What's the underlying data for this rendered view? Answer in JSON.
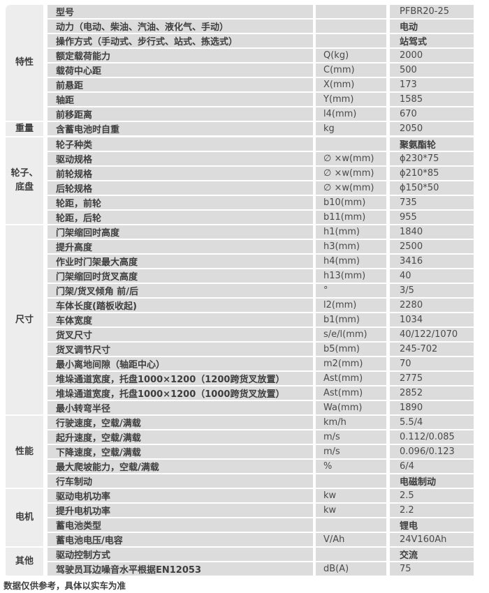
{
  "footer": "数据仅供参考，具体以实车为准",
  "table": {
    "groups": [
      {
        "category": "特性",
        "rows": [
          {
            "name": "型号",
            "unit": "",
            "value": "PFBR20-25"
          },
          {
            "name": "动力（电动、柴油、汽油、液化气、手动）",
            "unit": "",
            "value": "电动"
          },
          {
            "name": "操作方式（手动式、步行式、站式、拣选式）",
            "unit": "",
            "value": "站驾式"
          },
          {
            "name": "额定载荷能力",
            "unit": "Q(kg)",
            "value": "2000"
          },
          {
            "name": "载荷中心距",
            "unit": "C(mm)",
            "value": "500"
          },
          {
            "name": "前悬距",
            "unit": "X(mm)",
            "value": "173"
          },
          {
            "name": "轴距",
            "unit": "Y(mm)",
            "value": "1585"
          },
          {
            "name": "前移距离",
            "unit": "l4(mm)",
            "value": "670"
          }
        ]
      },
      {
        "category": "重量",
        "rows": [
          {
            "name": "含蓄电池时自重",
            "unit": "kg",
            "value": "2050"
          }
        ]
      },
      {
        "category": "轮子、底盘",
        "rows": [
          {
            "name": "轮子种类",
            "unit": "",
            "value": "聚氨酯轮"
          },
          {
            "name": "驱动规格",
            "unit": "∅ ×w(mm)",
            "value": "ϕ230*75"
          },
          {
            "name": "前轮规格",
            "unit": "∅ ×w(mm)",
            "value": "ϕ210*85"
          },
          {
            "name": "后轮规格",
            "unit": "∅ ×w(mm)",
            "value": "ϕ150*50"
          },
          {
            "name": "轮距，前轮",
            "unit": "b10(mm)",
            "value": "735"
          },
          {
            "name": "轮距，后轮",
            "unit": "b11(mm)",
            "value": "955"
          }
        ]
      },
      {
        "category": "尺寸",
        "rows": [
          {
            "name": "门架缩回时高度",
            "unit": "h1(mm)",
            "value": "1840"
          },
          {
            "name": "提升高度",
            "unit": "h3(mm)",
            "value": "2500"
          },
          {
            "name": "作业时门架最大高度",
            "unit": "h4(mm)",
            "value": "3416"
          },
          {
            "name": "门架缩回时货叉高度",
            "unit": "h13(mm)",
            "value": "40"
          },
          {
            "name": "门架/货叉倾角 前/后",
            "unit": "°",
            "value": "3/5"
          },
          {
            "name": "车体长度(踏板收起)",
            "unit": "l2(mm)",
            "value": "2280"
          },
          {
            "name": "车体宽度",
            "unit": "b1(mm)",
            "value": "1034"
          },
          {
            "name": "货叉尺寸",
            "unit": "s/e/l(mm)",
            "value": "40/122/1070"
          },
          {
            "name": "货叉调节尺寸",
            "unit": "b5(mm)",
            "value": "245-702"
          },
          {
            "name": "最小离地间隙（轴距中心）",
            "unit": "m2(mm)",
            "value": "70"
          },
          {
            "name": "堆垛通道宽度，托盘1000×1200（1200跨货叉放置）",
            "unit": "Ast(mm)",
            "value": "2775"
          },
          {
            "name": "堆垛通道宽度，托盘1000×1200（1000跨货叉放置）",
            "unit": "Ast(mm)",
            "value": "2852"
          },
          {
            "name": "最小转弯半径",
            "unit": "Wa(mm)",
            "value": "1890"
          }
        ]
      },
      {
        "category": "性能",
        "rows": [
          {
            "name": "行驶速度，空载/满载",
            "unit": "km/h",
            "value": "5.5/4"
          },
          {
            "name": "起升速度，空载/满载",
            "unit": "m/s",
            "value": "0.112/0.085"
          },
          {
            "name": "下降速度，空载/满载",
            "unit": "m/s",
            "value": "0.096/0.123"
          },
          {
            "name": "最大爬坡能力，空载/满载",
            "unit": "%",
            "value": "6/4"
          },
          {
            "name": "行车制动",
            "unit": "",
            "value": "电磁制动"
          }
        ]
      },
      {
        "category": "电机",
        "rows": [
          {
            "name": "驱动电机功率",
            "unit": "kw",
            "value": "2.5"
          },
          {
            "name": "提升电机功率",
            "unit": "kw",
            "value": "2.2"
          },
          {
            "name": "蓄电池类型",
            "unit": "",
            "value": "锂电"
          },
          {
            "name": "蓄电池电压/电容",
            "unit": "V/Ah",
            "value": "24V160Ah"
          }
        ]
      },
      {
        "category": "其他",
        "rows": [
          {
            "name": "驱动控制方式",
            "unit": "",
            "value": "交流"
          },
          {
            "name": "驾驶员耳边噪音水平根据EN12053",
            "unit": "dB(A)",
            "value": "75"
          }
        ]
      }
    ]
  }
}
